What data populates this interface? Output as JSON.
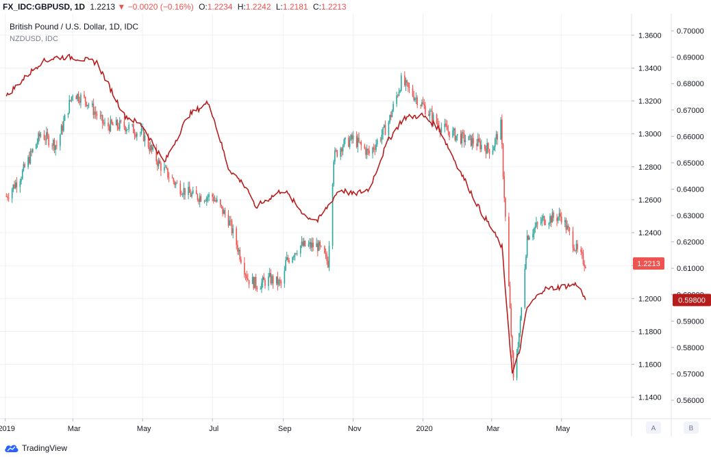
{
  "header": {
    "symbol": "FX_IDC:GBPUSD, 1D",
    "last": "1.2213",
    "change": "−0.0020 (−0.16%)",
    "open_label": "O:",
    "open": "1.2234",
    "high_label": "H:",
    "high": "1.2242",
    "low_label": "L:",
    "low": "1.2181",
    "close_label": "C:",
    "close": "1.2213"
  },
  "legend": {
    "main": "British Pound / U.S. Dollar, 1D, IDC",
    "compare": "NZDUSD, IDC"
  },
  "footer": {
    "brand": "TradingView"
  },
  "axis_buttons": [
    "A",
    "B"
  ],
  "colors": {
    "up": "#26a69a",
    "down": "#ef5350",
    "compare": "#b71c1c",
    "grid": "#eef0f3",
    "label_gbp": "#ef5350",
    "label_nzd": "#b71c1c"
  },
  "chart_data": {
    "type": "candlestick_with_compare_line",
    "x_tick_labels": [
      "2019",
      "Mar",
      "May",
      "Jul",
      "Sep",
      "Nov",
      "2020",
      "Mar",
      "May"
    ],
    "x_tick_dates": [
      "2019-01-01",
      "2019-03-01",
      "2019-05-01",
      "2019-07-01",
      "2019-09-01",
      "2019-11-01",
      "2020-01-01",
      "2020-03-01",
      "2020-05-01"
    ],
    "x_range": [
      "2018-12-31",
      "2020-06-30"
    ],
    "y_left_ticks": [
      "1.3600",
      "1.3400",
      "1.3200",
      "1.3000",
      "1.2800",
      "1.2600",
      "1.2400",
      "1.2200",
      "1.2000",
      "1.1800",
      "1.1600",
      "1.1400"
    ],
    "y_left_range": [
      1.127,
      1.373
    ],
    "y_right_ticks": [
      "0.70000",
      "0.69000",
      "0.68000",
      "0.67000",
      "0.66000",
      "0.65000",
      "0.64000",
      "0.63000",
      "0.62000",
      "0.61000",
      "0.60000",
      "0.59000",
      "0.58000",
      "0.57000",
      "0.56000"
    ],
    "y_right_range": [
      0.553,
      0.7065
    ],
    "last_labels": {
      "gbpusd": "1.2213",
      "nzdusd": "0.59800"
    },
    "gbpusd_series": {
      "name": "British Pound / U.S. Dollar",
      "dates": [
        "2019-01-02",
        "2019-01-15",
        "2019-02-01",
        "2019-02-15",
        "2019-03-01",
        "2019-03-13",
        "2019-03-29",
        "2019-04-15",
        "2019-05-01",
        "2019-05-15",
        "2019-06-01",
        "2019-06-15",
        "2019-07-01",
        "2019-07-15",
        "2019-08-01",
        "2019-08-10",
        "2019-08-20",
        "2019-09-01",
        "2019-09-03",
        "2019-09-15",
        "2019-10-01",
        "2019-10-10",
        "2019-10-15",
        "2019-10-22",
        "2019-11-01",
        "2019-11-15",
        "2019-12-01",
        "2019-12-13",
        "2019-12-31",
        "2020-01-15",
        "2020-02-01",
        "2020-02-15",
        "2020-03-01",
        "2020-03-09",
        "2020-03-20",
        "2020-03-26",
        "2020-04-01",
        "2020-04-15",
        "2020-05-01",
        "2020-05-15",
        "2020-05-22"
      ],
      "values": [
        1.262,
        1.275,
        1.3,
        1.293,
        1.325,
        1.32,
        1.305,
        1.305,
        1.3,
        1.282,
        1.268,
        1.262,
        1.262,
        1.248,
        1.212,
        1.208,
        1.212,
        1.208,
        1.222,
        1.232,
        1.232,
        1.222,
        1.286,
        1.293,
        1.297,
        1.288,
        1.305,
        1.332,
        1.318,
        1.305,
        1.298,
        1.295,
        1.29,
        1.305,
        1.15,
        1.185,
        1.238,
        1.248,
        1.25,
        1.228,
        1.2213
      ]
    },
    "nzdusd_series": {
      "name": "NZDUSD",
      "dates": [
        "2019-01-02",
        "2019-01-08",
        "2019-02-01",
        "2019-02-15",
        "2019-03-01",
        "2019-03-22",
        "2019-04-15",
        "2019-05-01",
        "2019-05-20",
        "2019-06-10",
        "2019-06-28",
        "2019-07-15",
        "2019-08-01",
        "2019-08-07",
        "2019-09-01",
        "2019-09-20",
        "2019-10-01",
        "2019-10-20",
        "2019-11-01",
        "2019-11-15",
        "2019-12-01",
        "2019-12-15",
        "2019-12-31",
        "2020-01-15",
        "2020-02-01",
        "2020-02-20",
        "2020-03-01",
        "2020-03-10",
        "2020-03-19",
        "2020-03-25",
        "2020-04-01",
        "2020-04-15",
        "2020-05-01",
        "2020-05-15",
        "2020-05-22"
      ],
      "values": [
        0.675,
        0.678,
        0.688,
        0.69,
        0.69,
        0.688,
        0.668,
        0.664,
        0.65,
        0.668,
        0.673,
        0.648,
        0.64,
        0.633,
        0.64,
        0.63,
        0.628,
        0.64,
        0.638,
        0.64,
        0.658,
        0.667,
        0.668,
        0.663,
        0.648,
        0.632,
        0.625,
        0.618,
        0.57,
        0.578,
        0.595,
        0.602,
        0.603,
        0.604,
        0.598
      ]
    }
  }
}
